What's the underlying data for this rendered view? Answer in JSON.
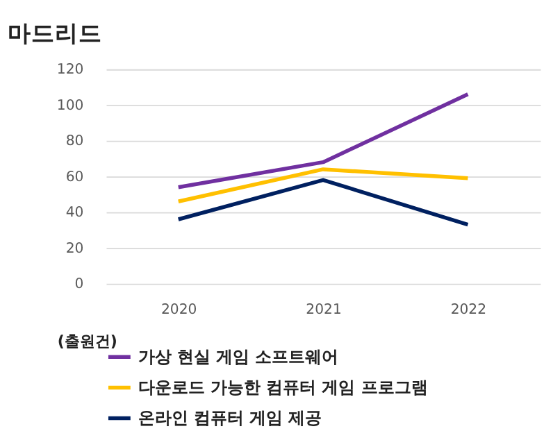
{
  "chart_data": {
    "type": "line",
    "title": "마드리드",
    "categories": [
      "2020",
      "2021",
      "2022"
    ],
    "series": [
      {
        "name": "가상 현실 게임 소프트웨어",
        "color": "#7030a0",
        "values": [
          54,
          68,
          106
        ]
      },
      {
        "name": "다운로드 가능한 컴퓨터 게임 프로그램",
        "color": "#ffc000",
        "values": [
          46,
          64,
          59
        ]
      },
      {
        "name": "온라인 컴퓨터 게임 제공",
        "color": "#002060",
        "values": [
          36,
          58,
          33
        ]
      }
    ],
    "ylim": [
      0,
      120
    ],
    "yticks": [
      0,
      20,
      40,
      60,
      80,
      100,
      120
    ],
    "grid": "y",
    "legend": "bottom",
    "marker": "none",
    "line_style": "solid",
    "annotations": [
      "(출원건)"
    ]
  }
}
